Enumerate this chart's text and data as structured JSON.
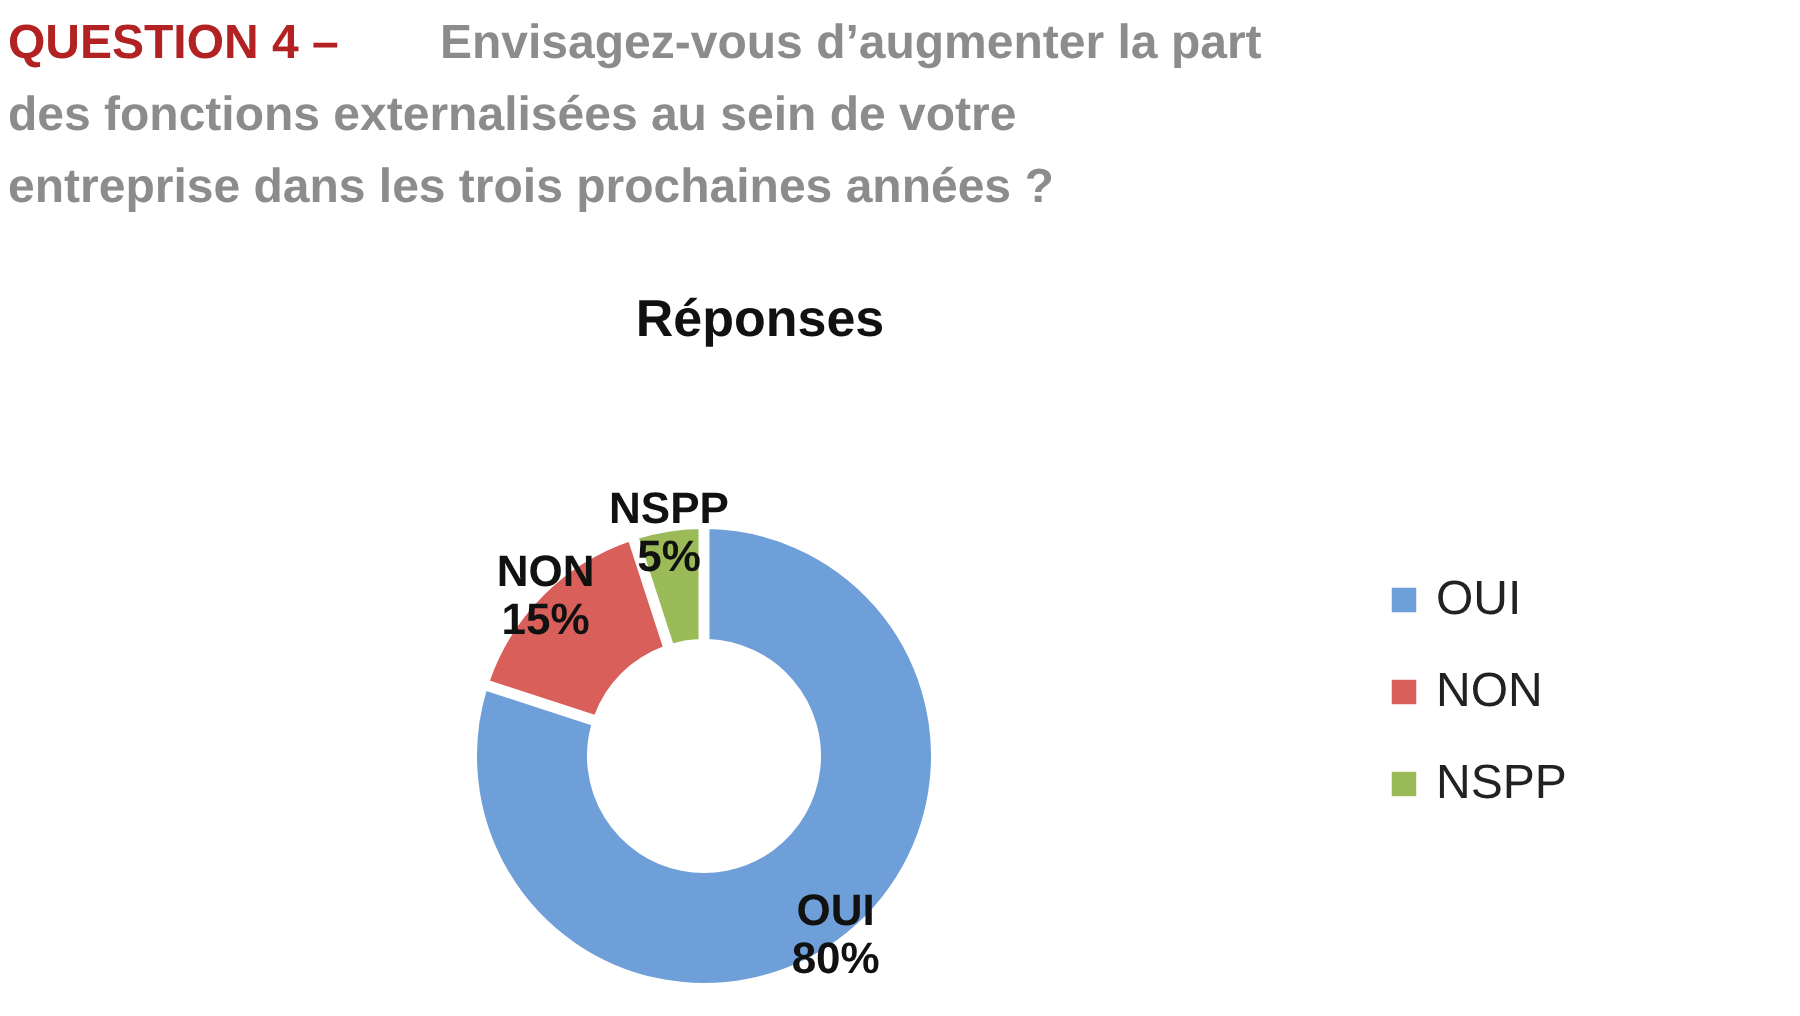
{
  "chart_data": {
    "type": "donut",
    "title": "QUESTION 4 – Envisagez-vous d’augmenter la part des fonctions externalisées au sein de votre entreprise dans les trois prochaines années ?",
    "subtitle": "Réponses",
    "categories": [
      "OUI",
      "NON",
      "NSPP"
    ],
    "values": [
      80,
      15,
      5
    ],
    "colors": [
      "#6f9fd8",
      "#d9605a",
      "#9bbb59"
    ],
    "value_labels": [
      "80%",
      "15%",
      "5%"
    ],
    "legend": "right"
  }
}
